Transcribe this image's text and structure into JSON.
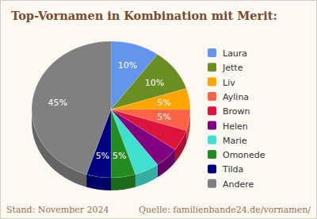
{
  "chart_data": {
    "type": "pie",
    "title": "Top-Vornamen in Kombination mit Merit:",
    "categories": [
      "Laura",
      "Jette",
      "Liv",
      "Aylina",
      "Brown",
      "Helen",
      "Marie",
      "Omonede",
      "Tilda",
      "Andere"
    ],
    "values": [
      10,
      10,
      5,
      5,
      5,
      5,
      5,
      5,
      5,
      45
    ],
    "value_labels": [
      "10%",
      "10%",
      "5%",
      "5%",
      null,
      null,
      null,
      "5%",
      "5%",
      "45%"
    ],
    "colors": [
      "#6495ed",
      "#6b8e23",
      "#ffa500",
      "#ff6347",
      "#dc143c",
      "#800080",
      "#40e0d0",
      "#228b22",
      "#000080",
      "#808080"
    ],
    "data_labels": true,
    "legend": "right",
    "annotations": [
      "Stand: November 2024",
      "Quelle: familienbande24.de/vornamen/"
    ]
  }
}
